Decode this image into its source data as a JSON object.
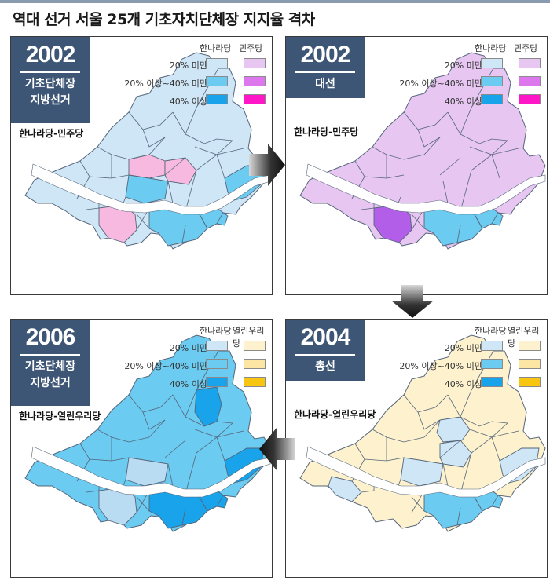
{
  "title": "역대 선거 서울 25개 기초자치단체장 지지율 격차",
  "colors": {
    "frame": "#3a3a3a",
    "year_box": "#3d5675",
    "river": "#ffffff",
    "district_line": "#55657a",
    "gnp_light": "#cfe6f7",
    "gnp_mid": "#6ccbf0",
    "gnp_dark": "#19a3ea",
    "mdp_light": "#e7c6f2",
    "mdp_mid": "#dd77ee",
    "mdp_dark": "#ff16c6",
    "uri_light": "#fdf2cd",
    "uri_mid": "#fde6a3",
    "uri_dark": "#f8c511",
    "pink": "#f7b9df",
    "pale_blue": "#b9dcf3",
    "lavender": "#d8b1f4",
    "violet": "#b35ee8"
  },
  "legend_rows": [
    "20% 미만",
    "20% 이상~40% 미만",
    "40% 이상"
  ],
  "panels": [
    {
      "year": "2002",
      "election_lines": [
        "기초단체장",
        "지방선거"
      ],
      "matchup": "한나라당-민주당",
      "legend_parties": [
        "한나라당",
        "민주당"
      ],
      "legend_colors": [
        [
          "#cfe6f7",
          "#e7c6f2"
        ],
        [
          "#6ccbf0",
          "#dd77ee"
        ],
        [
          "#19a3ea",
          "#ff16c6"
        ]
      ],
      "base_fill": "#cfe6f7",
      "highlights": [
        {
          "area": "jongno-east",
          "fill": "#f7b9df"
        },
        {
          "area": "jung",
          "fill": "#f7b9df"
        },
        {
          "area": "yongsan",
          "fill": "#6ccbf0"
        },
        {
          "area": "gangnam-seocho",
          "fill": "#6ccbf0"
        },
        {
          "area": "songpa",
          "fill": "#6ccbf0"
        },
        {
          "area": "gangdong",
          "fill": "#6ccbf0"
        },
        {
          "area": "gwanak",
          "fill": "#f7b9df"
        }
      ]
    },
    {
      "year": "2002",
      "election_lines": [
        "대선"
      ],
      "matchup": "한나라당-민주당",
      "legend_parties": [
        "한나라당",
        "민주당"
      ],
      "legend_colors": [
        [
          "#cfe6f7",
          "#e7c6f2"
        ],
        [
          "#6ccbf0",
          "#dd77ee"
        ],
        [
          "#19a3ea",
          "#ff16c6"
        ]
      ],
      "base_fill": "#e7c6f2",
      "highlights": [
        {
          "area": "gangnam-seocho",
          "fill": "#6ccbf0"
        },
        {
          "area": "songpa",
          "fill": "#6ccbf0"
        },
        {
          "area": "gwanak",
          "fill": "#b35ee8"
        }
      ]
    },
    {
      "year": "2006",
      "election_lines": [
        "기초단체장",
        "지방선거"
      ],
      "matchup": "한나라당-열린우리당",
      "legend_parties": [
        "한나라당",
        "열린우리당"
      ],
      "legend_colors": [
        [
          "#cfe6f7",
          "#fdf2cd"
        ],
        [
          "#6ccbf0",
          "#fde6a3"
        ],
        [
          "#19a3ea",
          "#f8c511"
        ]
      ],
      "base_fill": "#6ccbf0",
      "highlights": [
        {
          "area": "nowon",
          "fill": "#19a3ea"
        },
        {
          "area": "gangdong",
          "fill": "#19a3ea"
        },
        {
          "area": "gangnam-seocho",
          "fill": "#19a3ea"
        },
        {
          "area": "songpa",
          "fill": "#19a3ea"
        },
        {
          "area": "gwanak",
          "fill": "#b9dcf3"
        },
        {
          "area": "yongsan",
          "fill": "#b9dcf3"
        }
      ]
    },
    {
      "year": "2004",
      "election_lines": [
        "총선"
      ],
      "matchup": "한나라당-열린우리당",
      "legend_parties": [
        "한나라당",
        "열린우리당"
      ],
      "legend_colors": [
        [
          "#cfe6f7",
          "#fdf2cd"
        ],
        [
          "#6ccbf0",
          "#fde6a3"
        ],
        [
          "#19a3ea",
          "#f8c511"
        ]
      ],
      "base_fill": "#fdf2cd",
      "highlights": [
        {
          "area": "seongbuk-south",
          "fill": "#cfe6f7"
        },
        {
          "area": "jung",
          "fill": "#cfe6f7"
        },
        {
          "area": "yongsan",
          "fill": "#cfe6f7"
        },
        {
          "area": "gangdong",
          "fill": "#cfe6f7"
        },
        {
          "area": "yangcheon",
          "fill": "#cfe6f7"
        },
        {
          "area": "gangnam-seocho",
          "fill": "#6ccbf0"
        },
        {
          "area": "songpa",
          "fill": "#6ccbf0"
        }
      ]
    }
  ]
}
